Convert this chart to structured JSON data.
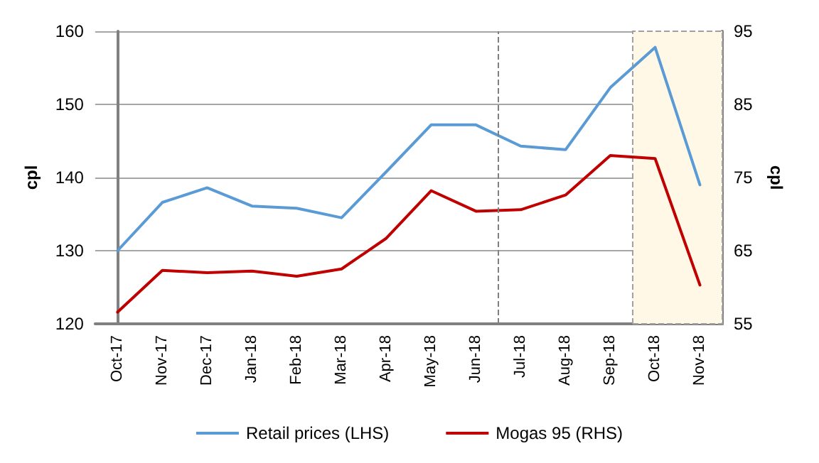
{
  "chart_data": {
    "type": "line",
    "ylabel": "cpl",
    "y2label": "cpl",
    "categories": [
      "Oct-17",
      "Nov-17",
      "Dec-17",
      "Jan-18",
      "Feb-18",
      "Mar-18",
      "Apr-18",
      "May-18",
      "Jun-18",
      "Jul-18",
      "Aug-18",
      "Sep-18",
      "Oct-18",
      "Nov-18"
    ],
    "series": [
      {
        "name": "Retail prices (LHS)",
        "color": "#5b9bd5",
        "values": [
          130,
          136.6,
          138.6,
          136.1,
          135.8,
          134.5,
          140.8,
          147.2,
          147.2,
          144.3,
          143.8,
          152.3,
          157.8,
          139
        ]
      },
      {
        "name": "Mogas 95 (RHS)",
        "color": "#c00000",
        "axis": "y2",
        "values": [
          56.6,
          62.3,
          62,
          62.2,
          61.5,
          62.5,
          66.7,
          73.2,
          70.4,
          70.6,
          72.6,
          78,
          77.6,
          60.3
        ]
      }
    ],
    "ylim": [
      120,
      160
    ],
    "yticks": [
      120,
      130,
      140,
      150,
      160
    ],
    "y2lim": [
      55,
      95
    ],
    "y2ticks": [
      55,
      65,
      75,
      85,
      95
    ],
    "ref_lines": [
      {
        "axis": "x",
        "value": "Jul-18",
        "color": "#808080",
        "line_style": "dashed"
      }
    ],
    "bands": [
      {
        "axis": "x",
        "from": "Oct-18",
        "to": "Nov-18",
        "color": "#fff8e6"
      }
    ],
    "grid": "y",
    "legend": "bottom",
    "marker": "none",
    "line_style": "solid"
  }
}
